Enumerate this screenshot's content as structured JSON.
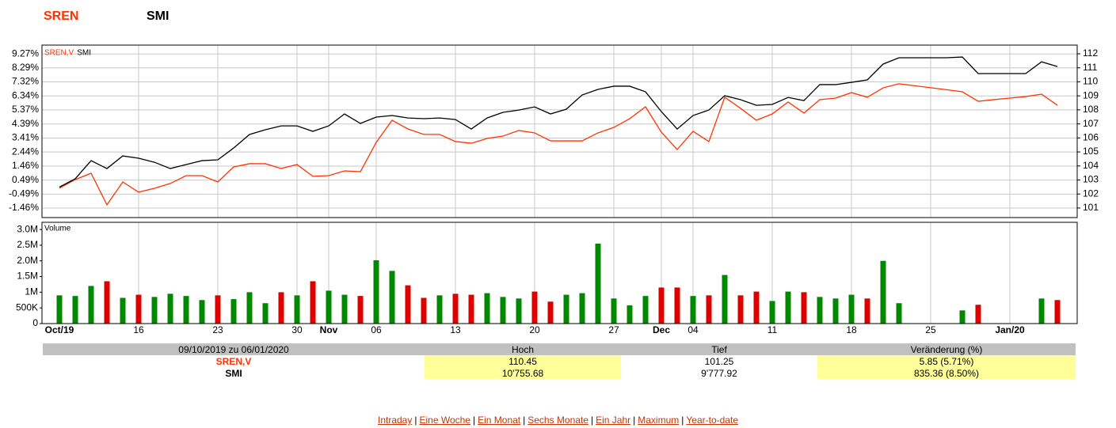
{
  "header": {
    "symbol": "SREN",
    "index": "SMI"
  },
  "chart_data": [
    {
      "type": "line",
      "legend_position": "upper left",
      "grid": true,
      "ylim": [
        -2.12,
        9.88
      ],
      "yticks": [
        {
          "value": -1.46,
          "label": "-1.46%"
        },
        {
          "value": -0.49,
          "label": "-0.49%"
        },
        {
          "value": 0.49,
          "label": "0.49%"
        },
        {
          "value": 1.46,
          "label": "1.46%"
        },
        {
          "value": 2.44,
          "label": "2.44%"
        },
        {
          "value": 3.41,
          "label": "3.41%"
        },
        {
          "value": 4.39,
          "label": "4.39%"
        },
        {
          "value": 5.37,
          "label": "5.37%"
        },
        {
          "value": 6.34,
          "label": "6.34%"
        },
        {
          "value": 7.32,
          "label": "7.32%"
        },
        {
          "value": 8.29,
          "label": "8.29%"
        },
        {
          "value": 9.27,
          "label": "9.27%"
        }
      ],
      "y2lim": [
        100.32,
        112.62
      ],
      "y2ticks": [
        101,
        102,
        103,
        104,
        105,
        106,
        107,
        108,
        109,
        110,
        111,
        112
      ],
      "series": [
        {
          "name": "SREN,V",
          "color": "#ff3300",
          "axis": "y2",
          "values": [
            102.41,
            103.03,
            103.48,
            101.23,
            102.86,
            102.13,
            102.41,
            102.75,
            103.31,
            103.31,
            102.86,
            103.93,
            104.16,
            104.16,
            103.82,
            104.1,
            103.26,
            103.31,
            103.65,
            103.59,
            105.68,
            107.26,
            106.64,
            106.25,
            106.25,
            105.74,
            105.62,
            105.96,
            106.13,
            106.53,
            106.36,
            105.79,
            105.79,
            105.79,
            106.36,
            106.75,
            107.37,
            108.22,
            106.41,
            105.17,
            106.47,
            105.74,
            108.9,
            108.11,
            107.26,
            107.71,
            108.56,
            107.77,
            108.73,
            108.84,
            109.23,
            108.9,
            109.57,
            109.86,
            109.72,
            109.58,
            109.44,
            109.29,
            108.61,
            108.73,
            108.84,
            108.95,
            109.12,
            108.33
          ]
        },
        {
          "name": "SMI",
          "color": "#000000",
          "values": [
            0.0,
            0.58,
            1.84,
            1.29,
            2.17,
            2.01,
            1.73,
            1.29,
            1.57,
            1.84,
            1.9,
            2.72,
            3.66,
            3.99,
            4.26,
            4.26,
            3.88,
            4.26,
            5.09,
            4.43,
            4.87,
            4.98,
            4.81,
            4.76,
            4.81,
            4.7,
            4.04,
            4.81,
            5.2,
            5.36,
            5.58,
            5.09,
            5.42,
            6.41,
            6.8,
            7.02,
            7.02,
            6.63,
            5.25,
            4.04,
            4.98,
            5.36,
            6.36,
            6.08,
            5.69,
            5.75,
            6.24,
            6.02,
            7.13,
            7.13,
            7.29,
            7.46,
            8.56,
            9.0,
            9.0,
            9.0,
            9.0,
            9.05,
            7.9,
            7.9,
            7.9,
            7.9,
            8.72,
            8.39
          ]
        }
      ]
    },
    {
      "type": "bar",
      "title": "Volume",
      "grid": true,
      "categories": [
        "Oct/19",
        null,
        null,
        null,
        null,
        "16",
        null,
        null,
        null,
        null,
        "23",
        null,
        null,
        null,
        null,
        "30",
        null,
        "Nov",
        null,
        null,
        "06",
        null,
        null,
        null,
        null,
        "13",
        null,
        null,
        null,
        null,
        "20",
        null,
        null,
        null,
        null,
        "27",
        null,
        null,
        "Dec",
        null,
        "04",
        null,
        null,
        null,
        null,
        "11",
        null,
        null,
        null,
        null,
        "18",
        null,
        null,
        null,
        null,
        "25",
        null,
        null,
        null,
        null,
        "Jan/20",
        null,
        null,
        null
      ],
      "values": [
        0.9,
        0.88,
        1.2,
        1.35,
        0.82,
        0.92,
        0.85,
        0.95,
        0.88,
        0.75,
        0.9,
        0.78,
        1.0,
        0.65,
        1.0,
        0.9,
        1.35,
        1.05,
        0.92,
        0.88,
        2.02,
        1.68,
        1.22,
        0.82,
        0.9,
        0.95,
        0.92,
        0.97,
        0.85,
        0.8,
        1.02,
        0.7,
        0.92,
        0.97,
        2.55,
        0.8,
        0.58,
        0.88,
        1.15,
        1.15,
        0.88,
        0.9,
        1.55,
        0.9,
        1.02,
        0.72,
        1.02,
        1.0,
        0.85,
        0.8,
        0.92,
        0.8,
        2.0,
        0.65,
        null,
        null,
        null,
        0.42,
        0.6,
        null,
        null,
        null,
        0.8,
        0.75
      ],
      "bar_colors": [
        "#008800",
        "#008800",
        "#008800",
        "#dd0000",
        "#008800",
        "#dd0000",
        "#008800",
        "#008800",
        "#008800",
        "#008800",
        "#dd0000",
        "#008800",
        "#008800",
        "#008800",
        "#dd0000",
        "#008800",
        "#dd0000",
        "#008800",
        "#008800",
        "#dd0000",
        "#008800",
        "#008800",
        "#dd0000",
        "#dd0000",
        "#008800",
        "#dd0000",
        "#dd0000",
        "#008800",
        "#008800",
        "#008800",
        "#dd0000",
        "#dd0000",
        "#008800",
        "#008800",
        "#008800",
        "#008800",
        "#008800",
        "#008800",
        "#dd0000",
        "#dd0000",
        "#008800",
        "#dd0000",
        "#008800",
        "#dd0000",
        "#dd0000",
        "#008800",
        "#008800",
        "#dd0000",
        "#008800",
        "#008800",
        "#008800",
        "#dd0000",
        "#008800",
        "#008800",
        null,
        null,
        null,
        "#008800",
        "#dd0000",
        null,
        null,
        null,
        "#008800",
        "#dd0000"
      ],
      "ylim": [
        0,
        3.23
      ],
      "yticks": [
        0,
        {
          "value": 0.5,
          "label": "500K"
        },
        {
          "value": 1,
          "label": "1M"
        },
        {
          "value": 1.5,
          "label": "1.5M"
        },
        {
          "value": 2,
          "label": "2.0M"
        },
        {
          "value": 2.5,
          "label": "2.5M"
        },
        {
          "value": 3,
          "label": "3.0M"
        }
      ]
    }
  ],
  "table": {
    "header": [
      "09/10/2019 zu 06/01/2020",
      "Hoch",
      "Tief",
      "Veränderung (%)"
    ],
    "rows": [
      [
        "SREN,V",
        "110.45",
        "101.25",
        "5.85 (5.71%)"
      ],
      [
        "SMI",
        "10'755.68",
        "9'777.92",
        "835.36 (8.50%)"
      ]
    ]
  },
  "links": [
    "Intraday",
    "Eine Woche",
    "Ein Monat",
    "Sechs Monate",
    "Ein Jahr",
    "Maximum",
    "Year-to-date"
  ],
  "link_separator": "|"
}
